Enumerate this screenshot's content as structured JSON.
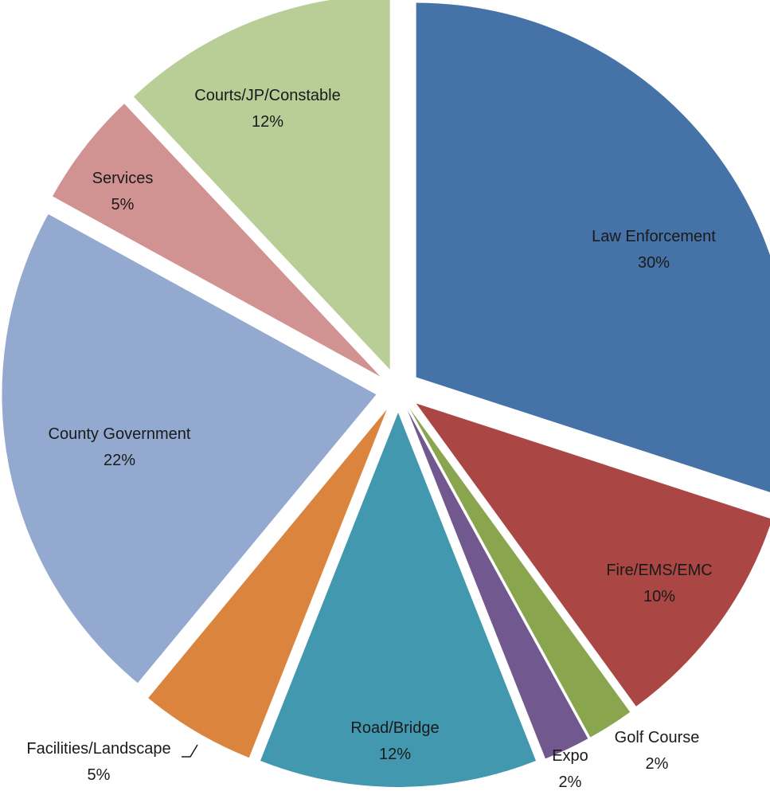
{
  "chart_data": {
    "type": "pie",
    "exploded": true,
    "slices": [
      {
        "label": "Law Enforcement",
        "value": 30,
        "value_label": "30%",
        "color": "#4572A7"
      },
      {
        "label": "Fire/EMS/EMC",
        "value": 10,
        "value_label": "10%",
        "color": "#AA4643"
      },
      {
        "label": "Golf Course",
        "value": 2,
        "value_label": "2%",
        "color": "#89A54E"
      },
      {
        "label": "Expo",
        "value": 2,
        "value_label": "2%",
        "color": "#71588F"
      },
      {
        "label": "Road/Bridge",
        "value": 12,
        "value_label": "12%",
        "color": "#4198AF"
      },
      {
        "label": "Facilities/Landscape",
        "value": 5,
        "value_label": "5%",
        "color": "#DB843D"
      },
      {
        "label": "County Government",
        "value": 22,
        "value_label": "22%",
        "color": "#93A9CF"
      },
      {
        "label": "Services",
        "value": 5,
        "value_label": "5%",
        "color": "#D19392"
      },
      {
        "label": "Courts/JP/Constable",
        "value": 12,
        "value_label": "12%",
        "color": "#B9CD96"
      }
    ]
  }
}
